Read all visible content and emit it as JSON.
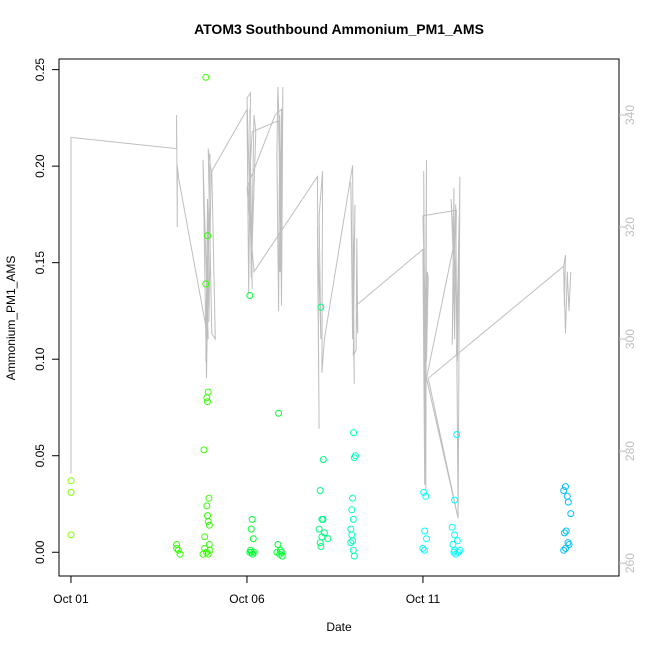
{
  "chart_data": {
    "type": "scatter",
    "title": "ATOM3 Southbound Ammonium_PM1_AMS",
    "xlabel": "Date",
    "ylabel": "Ammonium_PM1_AMS",
    "x_ticks": [
      {
        "label": "Oct 01",
        "value": 1
      },
      {
        "label": "Oct 06",
        "value": 6
      },
      {
        "label": "Oct 11",
        "value": 11
      }
    ],
    "xlim": [
      0.66,
      16.57
    ],
    "ylim": [
      -0.0123,
      0.2555
    ],
    "y_ticks": [
      {
        "label": "0.00",
        "value": 0.0
      },
      {
        "label": "0.05",
        "value": 0.05
      },
      {
        "label": "0.10",
        "value": 0.1
      },
      {
        "label": "0.15",
        "value": 0.15
      },
      {
        "label": "0.20",
        "value": 0.2
      },
      {
        "label": "0.25",
        "value": 0.25
      }
    ],
    "y2lim": [
      257.7,
      350.0
    ],
    "y2_ticks": [
      {
        "label": "260",
        "value": 260
      },
      {
        "label": "280",
        "value": 280
      },
      {
        "label": "300",
        "value": 300
      },
      {
        "label": "320",
        "value": 320
      },
      {
        "label": "340",
        "value": 340
      }
    ],
    "y2_color": "#bebebe",
    "line_color": "#bebebe",
    "grid": false,
    "point_series": [
      {
        "color": "#7fff00",
        "points": [
          [
            1.0,
            0.037
          ],
          [
            1.0,
            0.031
          ],
          [
            1.0,
            0.009
          ]
        ]
      },
      {
        "color": "#33ff00",
        "points": [
          [
            4.0,
            0.004
          ],
          [
            4.0,
            0.002
          ],
          [
            4.05,
            0.001
          ],
          [
            4.1,
            -0.001
          ],
          [
            4.83,
            0.246
          ],
          [
            4.88,
            0.164
          ],
          [
            4.83,
            0.139
          ],
          [
            4.86,
            0.08
          ],
          [
            4.88,
            0.078
          ],
          [
            4.9,
            0.083
          ],
          [
            4.78,
            0.053
          ],
          [
            4.92,
            0.028
          ],
          [
            4.86,
            0.024
          ],
          [
            4.88,
            0.019
          ],
          [
            4.9,
            0.016
          ],
          [
            4.93,
            0.014
          ],
          [
            4.8,
            0.008
          ],
          [
            4.93,
            0.004
          ],
          [
            4.8,
            0.002
          ],
          [
            4.85,
            0.0
          ],
          [
            4.9,
            -0.001
          ],
          [
            4.75,
            -0.001
          ],
          [
            4.95,
            0.001
          ]
        ]
      },
      {
        "color": "#00ff33",
        "points": [
          [
            6.08,
            0.133
          ],
          [
            6.15,
            0.017
          ],
          [
            6.12,
            0.012
          ],
          [
            6.18,
            0.007
          ],
          [
            6.1,
            0.001
          ],
          [
            6.13,
            0.0
          ],
          [
            6.16,
            -0.001
          ],
          [
            6.2,
            0.0
          ],
          [
            6.08,
            0.0
          ],
          [
            6.9,
            0.072
          ],
          [
            6.88,
            0.004
          ],
          [
            6.85,
            0.0
          ],
          [
            6.93,
            -0.001
          ],
          [
            6.98,
            0.0
          ],
          [
            7.0,
            -0.002
          ],
          [
            6.95,
            0.001
          ]
        ]
      },
      {
        "color": "#00ff7f",
        "points": [
          [
            8.1,
            0.127
          ],
          [
            8.17,
            0.048
          ],
          [
            8.08,
            0.032
          ],
          [
            8.13,
            0.017
          ],
          [
            8.16,
            0.017
          ],
          [
            8.05,
            0.012
          ],
          [
            8.13,
            0.008
          ],
          [
            8.08,
            0.005
          ],
          [
            8.1,
            0.003
          ],
          [
            8.2,
            0.01
          ],
          [
            8.3,
            0.007
          ]
        ]
      },
      {
        "color": "#00ffbf",
        "points": [
          [
            9.03,
            0.062
          ],
          [
            9.08,
            0.05
          ],
          [
            9.05,
            0.049
          ],
          [
            9.0,
            0.028
          ],
          [
            8.98,
            0.022
          ],
          [
            9.02,
            0.017
          ],
          [
            8.95,
            0.012
          ],
          [
            8.98,
            0.009
          ],
          [
            9.0,
            0.006
          ],
          [
            8.95,
            0.005
          ],
          [
            9.02,
            0.001
          ],
          [
            9.05,
            -0.002
          ]
        ]
      },
      {
        "color": "#00ffff",
        "points": [
          [
            11.02,
            0.031
          ],
          [
            11.08,
            0.029
          ],
          [
            11.05,
            0.011
          ],
          [
            11.1,
            0.007
          ],
          [
            11.0,
            0.002
          ],
          [
            11.04,
            0.001
          ],
          [
            11.96,
            0.061
          ],
          [
            11.9,
            0.027
          ],
          [
            11.83,
            0.013
          ],
          [
            11.9,
            0.009
          ],
          [
            11.98,
            0.006
          ],
          [
            11.85,
            0.004
          ],
          [
            11.9,
            0.001
          ],
          [
            12.0,
            0.0
          ],
          [
            11.93,
            -0.001
          ],
          [
            12.05,
            0.001
          ],
          [
            11.88,
            0.0
          ]
        ]
      },
      {
        "color": "#00bfff",
        "points": [
          [
            15.05,
            0.034
          ],
          [
            15.0,
            0.032
          ],
          [
            15.1,
            0.029
          ],
          [
            15.13,
            0.026
          ],
          [
            15.2,
            0.02
          ],
          [
            15.07,
            0.011
          ],
          [
            15.02,
            0.01
          ],
          [
            15.12,
            0.005
          ],
          [
            15.15,
            0.004
          ],
          [
            15.05,
            0.002
          ],
          [
            15.0,
            0.001
          ]
        ]
      }
    ],
    "line_secondary": [
      [
        1.0,
        276
      ],
      [
        1.0,
        336
      ],
      [
        4.0,
        334
      ],
      [
        4.0,
        340
      ],
      [
        4.02,
        320
      ],
      [
        4.02,
        331
      ],
      [
        4.05,
        329
      ],
      [
        4.9,
        300
      ],
      [
        4.75,
        332
      ],
      [
        4.85,
        293
      ],
      [
        4.95,
        333
      ],
      [
        4.83,
        296
      ],
      [
        4.88,
        325
      ],
      [
        4.92,
        303
      ],
      [
        4.98,
        330
      ],
      [
        4.9,
        334
      ],
      [
        5.0,
        301
      ],
      [
        5.1,
        300
      ],
      [
        5.0,
        330
      ],
      [
        6.0,
        341
      ],
      [
        6.05,
        308
      ],
      [
        6.1,
        344
      ],
      [
        6.0,
        343
      ],
      [
        6.15,
        309
      ],
      [
        6.08,
        341
      ],
      [
        6.12,
        311
      ],
      [
        6.2,
        340
      ],
      [
        6.25,
        337
      ],
      [
        6.13,
        313
      ],
      [
        6.1,
        319
      ],
      [
        6.05,
        326
      ],
      [
        6.15,
        337
      ],
      [
        6.9,
        339
      ],
      [
        6.95,
        320
      ],
      [
        6.92,
        312
      ],
      [
        7.0,
        323
      ],
      [
        6.88,
        345
      ],
      [
        6.85,
        333
      ],
      [
        6.9,
        305
      ],
      [
        6.93,
        340
      ],
      [
        6.98,
        306
      ],
      [
        7.02,
        345
      ],
      [
        6.95,
        312
      ],
      [
        6.98,
        341
      ],
      [
        6.8,
        340
      ],
      [
        6.0,
        327
      ],
      [
        6.2,
        312
      ],
      [
        8.0,
        329
      ],
      [
        8.05,
        284
      ],
      [
        8.0,
        320
      ],
      [
        8.1,
        300
      ],
      [
        8.05,
        322
      ],
      [
        8.15,
        330
      ],
      [
        8.13,
        294
      ],
      [
        8.2,
        300
      ],
      [
        9.0,
        331
      ],
      [
        9.05,
        292
      ],
      [
        8.95,
        328
      ],
      [
        9.0,
        300
      ],
      [
        9.07,
        324
      ],
      [
        9.02,
        297
      ],
      [
        9.1,
        298
      ],
      [
        9.12,
        318
      ],
      [
        9.15,
        301
      ],
      [
        9.1,
        306
      ],
      [
        11.0,
        316
      ],
      [
        11.05,
        274
      ],
      [
        11.02,
        330
      ],
      [
        11.08,
        273
      ],
      [
        11.1,
        332
      ],
      [
        11.05,
        279
      ],
      [
        11.12,
        312
      ],
      [
        11.15,
        311
      ],
      [
        11.1,
        296
      ],
      [
        11.0,
        322
      ],
      [
        11.95,
        323
      ],
      [
        11.9,
        300
      ],
      [
        11.88,
        327
      ],
      [
        11.83,
        299
      ],
      [
        11.93,
        324
      ],
      [
        12.0,
        268
      ],
      [
        12.05,
        329
      ],
      [
        11.98,
        296
      ],
      [
        12.03,
        322
      ],
      [
        11.95,
        297
      ],
      [
        12.0,
        303
      ],
      [
        11.8,
        325
      ],
      [
        11.85,
        316
      ],
      [
        11.1,
        293
      ],
      [
        12.0,
        268
      ],
      [
        11.15,
        293
      ],
      [
        15.0,
        313
      ],
      [
        15.02,
        306
      ],
      [
        15.05,
        315
      ],
      [
        15.0,
        313
      ],
      [
        15.05,
        301
      ],
      [
        15.1,
        312
      ],
      [
        15.15,
        305
      ],
      [
        15.2,
        312
      ]
    ]
  }
}
